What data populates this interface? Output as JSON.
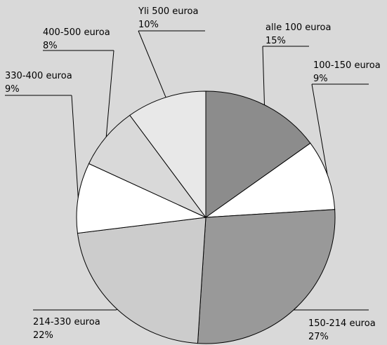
{
  "chart_data": {
    "type": "pie",
    "title": "",
    "series": [
      {
        "label": "alle 100 euroa",
        "value": 15,
        "value_label": "15%",
        "color": "#8c8c8c"
      },
      {
        "label": "100-150 euroa",
        "value": 9,
        "value_label": "9%",
        "color": "#ffffff"
      },
      {
        "label": "150-214 euroa",
        "value": 27,
        "value_label": "27%",
        "color": "#999999"
      },
      {
        "label": "214-330 euroa",
        "value": 22,
        "value_label": "22%",
        "color": "#cccccc"
      },
      {
        "label": "330-400 euroa",
        "value": 9,
        "value_label": "9%",
        "color": "#ffffff"
      },
      {
        "label": "400-500 euroa",
        "value": 8,
        "value_label": "8%",
        "color": "#d9d9d9"
      },
      {
        "label": "Yli 500 euroa",
        "value": 10,
        "value_label": "10%",
        "color": "#e8e8e8"
      }
    ]
  }
}
